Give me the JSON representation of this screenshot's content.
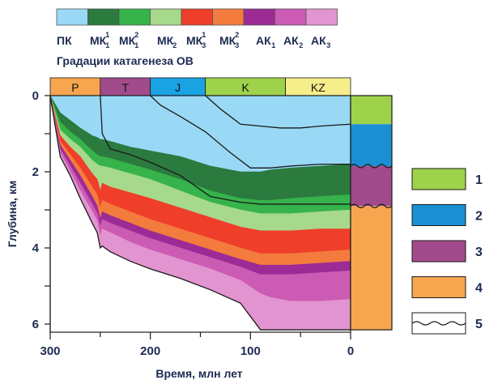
{
  "chart_data": {
    "type": "area",
    "xlabel": "Время, млн лет",
    "ylabel": "Глубина, км",
    "xlim": [
      300,
      0
    ],
    "ylim": [
      0,
      6
    ],
    "x_ticks": [
      {
        "label": "300",
        "value": 300
      },
      {
        "label": "200",
        "value": 200
      },
      {
        "label": "100",
        "value": 100
      },
      {
        "label": "0",
        "value": 0
      }
    ],
    "y_ticks": [
      {
        "label": "0",
        "value": 0
      },
      {
        "label": "2",
        "value": 2
      },
      {
        "label": "4",
        "value": 4
      },
      {
        "label": "6",
        "value": 6
      }
    ],
    "periods": [
      {
        "label": "P",
        "start": 300,
        "end": 250,
        "color": "#f7a64f"
      },
      {
        "label": "T",
        "start": 250,
        "end": 200,
        "color": "#a14b8c"
      },
      {
        "label": "J",
        "start": 200,
        "end": 145,
        "color": "#1aa3e3"
      },
      {
        "label": "K",
        "start": 145,
        "end": 65,
        "color": "#9ed24a"
      },
      {
        "label": "KZ",
        "start": 65,
        "end": 0,
        "color": "#f5ee8a"
      }
    ],
    "zones_title": "Градации катагенеза ОВ",
    "zones": [
      {
        "main": "ПК",
        "sub": "",
        "sup": "",
        "color": "#99d9f6"
      },
      {
        "main": "МК",
        "sub": "1",
        "sup": "1",
        "color": "#2b7a3e"
      },
      {
        "main": "МК",
        "sub": "1",
        "sup": "2",
        "color": "#36b34a"
      },
      {
        "main": "МК",
        "sub": "2",
        "sup": "",
        "color": "#a6d98b"
      },
      {
        "main": "МК",
        "sub": "3",
        "sup": "1",
        "color": "#ef3e2a"
      },
      {
        "main": "МК",
        "sub": "3",
        "sup": "2",
        "color": "#f47b3e"
      },
      {
        "main": "АК",
        "sub": "1",
        "sup": "",
        "color": "#9c2b96"
      },
      {
        "main": "АК",
        "sub": "2",
        "sup": "",
        "color": "#cc5bb3"
      },
      {
        "main": "АК",
        "sub": "3",
        "sup": "",
        "color": "#e294d0"
      }
    ],
    "x": [
      300,
      290,
      280,
      270,
      258,
      253,
      250,
      248,
      240,
      220,
      200,
      170,
      140,
      110,
      90,
      80,
      60,
      30,
      0
    ],
    "zone_boundaries": [
      {
        "between": "ПК / МК1¹",
        "depth": [
          0,
          0.45,
          0.65,
          0.85,
          1.05,
          1.1,
          1.15,
          1.15,
          1.2,
          1.35,
          1.45,
          1.6,
          1.85,
          2.0,
          2.0,
          1.95,
          1.9,
          1.85,
          1.8
        ]
      },
      {
        "between": "МК1¹ / МК1²",
        "depth": [
          0,
          0.7,
          0.95,
          1.15,
          1.45,
          1.55,
          1.6,
          1.6,
          1.65,
          1.8,
          1.95,
          2.2,
          2.5,
          2.7,
          2.75,
          2.75,
          2.7,
          2.65,
          2.6
        ]
      },
      {
        "between": "МК1² / МК2",
        "depth": [
          0,
          0.9,
          1.15,
          1.35,
          1.7,
          1.8,
          1.85,
          1.85,
          1.9,
          2.05,
          2.2,
          2.5,
          2.8,
          3.0,
          3.1,
          3.1,
          3.1,
          3.05,
          3.0
        ]
      },
      {
        "between": "МК2 / МК3¹",
        "depth": [
          0,
          1.05,
          1.35,
          1.6,
          2.05,
          2.2,
          2.5,
          2.3,
          2.4,
          2.55,
          2.7,
          2.95,
          3.2,
          3.45,
          3.55,
          3.55,
          3.55,
          3.5,
          3.5
        ]
      },
      {
        "between": "МК3¹ / МК3²",
        "depth": [
          0,
          1.2,
          1.55,
          1.9,
          2.4,
          2.6,
          2.95,
          2.75,
          2.85,
          3.05,
          3.25,
          3.5,
          3.75,
          4.0,
          4.15,
          4.15,
          4.15,
          4.1,
          4.05
        ]
      },
      {
        "between": "МК3² / АК1",
        "depth": [
          0,
          1.3,
          1.7,
          2.1,
          2.65,
          2.9,
          3.25,
          3.05,
          3.15,
          3.35,
          3.55,
          3.8,
          4.05,
          4.3,
          4.45,
          4.45,
          4.45,
          4.4,
          4.35
        ]
      },
      {
        "between": "АК1 / АК2",
        "depth": [
          0,
          1.4,
          1.85,
          2.3,
          2.85,
          3.1,
          3.45,
          3.25,
          3.35,
          3.55,
          3.75,
          4.0,
          4.25,
          4.5,
          4.7,
          4.7,
          4.7,
          4.65,
          4.6
        ]
      },
      {
        "between": "АК2 / АК3",
        "depth": [
          0,
          1.5,
          2.0,
          2.5,
          3.05,
          3.3,
          3.7,
          3.5,
          3.6,
          3.85,
          4.05,
          4.3,
          4.55,
          4.85,
          5.2,
          5.3,
          5.4,
          5.4,
          5.35
        ]
      },
      {
        "between": "АК3 / base",
        "depth": [
          0,
          1.6,
          2.1,
          2.7,
          3.35,
          3.6,
          4.0,
          3.95,
          4.1,
          4.35,
          4.55,
          4.8,
          5.1,
          5.45,
          6.15,
          6.15,
          6.15,
          6.15,
          6.15
        ]
      }
    ],
    "burial_lines": [
      {
        "x": [
          300,
          290,
          280,
          270,
          258,
          253,
          250,
          248,
          240,
          220,
          200,
          170,
          140,
          110,
          90,
          80,
          60,
          30,
          0
        ],
        "depth": [
          0,
          1.6,
          2.1,
          2.7,
          3.35,
          3.6,
          4.0,
          3.95,
          4.1,
          4.35,
          4.55,
          4.8,
          5.1,
          5.45,
          6.15,
          6.15,
          6.15,
          6.15,
          6.15
        ]
      },
      {
        "x": [
          250,
          248,
          240,
          220,
          200,
          170,
          140,
          110,
          90,
          80,
          60,
          30,
          0
        ],
        "depth": [
          0,
          1.0,
          1.4,
          1.55,
          1.75,
          2.1,
          2.65,
          2.8,
          2.85,
          2.85,
          2.85,
          2.85,
          2.85
        ]
      },
      {
        "x": [
          200,
          190,
          170,
          145,
          120,
          100,
          80,
          60,
          30,
          0
        ],
        "depth": [
          0,
          0.25,
          0.55,
          0.95,
          1.5,
          1.9,
          1.9,
          1.85,
          1.8,
          1.8
        ]
      },
      {
        "x": [
          145,
          130,
          110,
          90,
          70,
          50,
          30,
          0
        ],
        "depth": [
          0,
          0.35,
          0.75,
          0.8,
          0.85,
          0.85,
          0.8,
          0.75
        ]
      }
    ],
    "column": [
      {
        "top": 0,
        "bottom": 0.75,
        "color": "#9ed24a"
      },
      {
        "top": 0.75,
        "bottom": 1.85,
        "color": "#1a8fd2"
      },
      {
        "top": 1.85,
        "bottom": 2.9,
        "color": "#a14b8c"
      },
      {
        "top": 2.9,
        "bottom": 6.15,
        "color": "#f7a64f"
      }
    ],
    "legend": [
      {
        "number": "1",
        "color": "#9ed24a"
      },
      {
        "number": "2",
        "color": "#1a8fd2"
      },
      {
        "number": "3",
        "color": "#a14b8c"
      },
      {
        "number": "4",
        "color": "#f7a64f"
      },
      {
        "number": "5",
        "color": "#ffffff"
      }
    ]
  }
}
